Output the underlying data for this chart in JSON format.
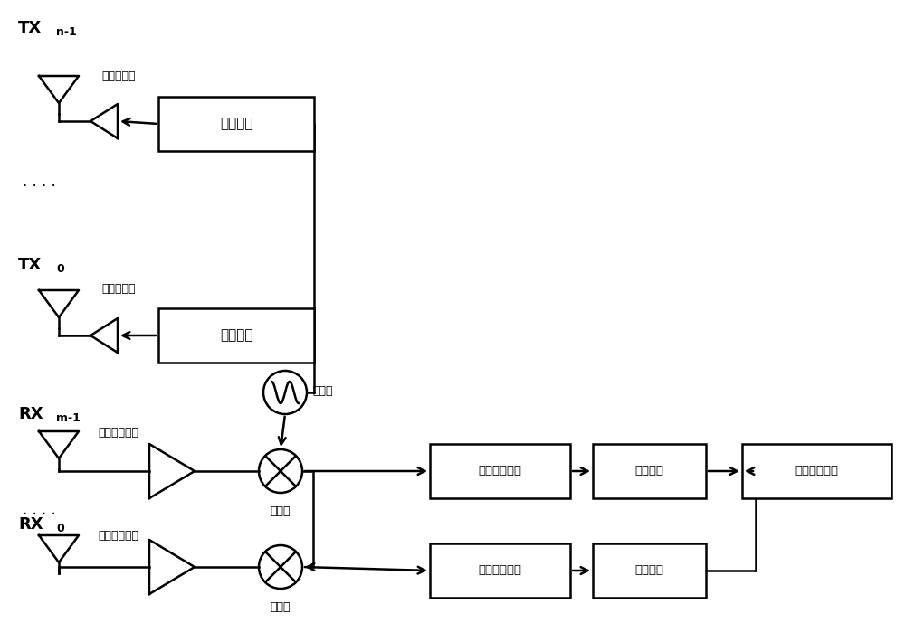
{
  "bg_color": "#ffffff",
  "line_color": "#000000",
  "text_color": "#000000",
  "figsize": [
    10.0,
    6.89
  ],
  "dpi": 100,
  "labels": {
    "tx_n1_main": "TX",
    "tx_n1_sub": "n-1",
    "tx_0_main": "TX",
    "tx_0_sub": "0",
    "rx_m1_main": "RX",
    "rx_m1_sub": "m-1",
    "rx_0_main": "RX",
    "rx_0_sub": "0",
    "power_amp1": "功率放大器",
    "power_amp2": "功率放大器",
    "phase_dist1": "相位加扰",
    "phase_dist2": "相位加扰",
    "lna1": "低噪声放大器",
    "lna2": "低噪声放大器",
    "mixer1": "混频器",
    "mixer2": "混频器",
    "oscillator": "振动器",
    "rf_bb1": "射频基带处理",
    "rf_bb2": "射频基带处理",
    "adc1": "模数转换",
    "adc2": "模数转换",
    "dbb": "数字基带处理",
    "dots": ". . . ."
  }
}
